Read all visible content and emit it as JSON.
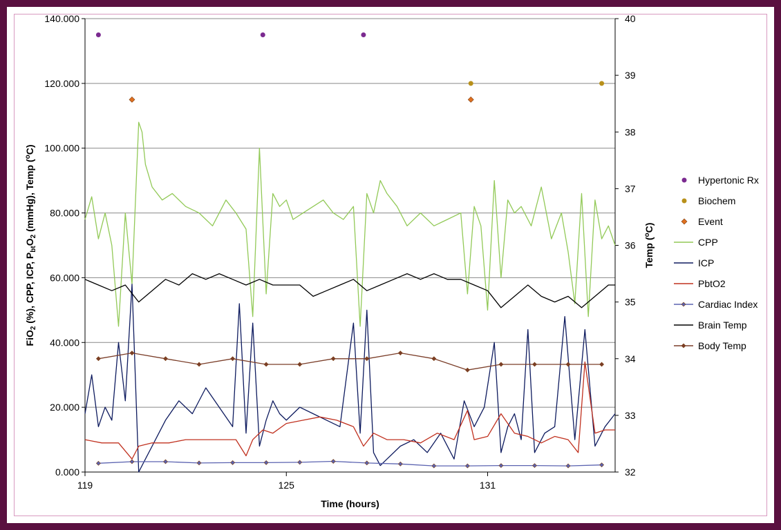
{
  "chart_data": {
    "type": "line",
    "xlabel": "Time (hours)",
    "ylabel_html": "FiO2 (%), CPP, ICP, PbtO2 (mmHg), Temp (oC)",
    "ylabel_parts": [
      "FiO",
      "2",
      " (%), CPP,  ICP, P",
      "bt",
      "O",
      "2",
      " (mmHg), Temp (",
      "o",
      "C)"
    ],
    "y2label": "Temp (oC)",
    "y2label_parts": [
      "Temp (",
      "o",
      "C)"
    ],
    "xlim": [
      119,
      134.8
    ],
    "ylim": [
      0,
      140
    ],
    "y2lim": [
      32,
      40
    ],
    "xticks": [
      119,
      125,
      131
    ],
    "xtick_labels": [
      "119",
      "125",
      "131"
    ],
    "yticks": [
      0,
      20,
      40,
      60,
      80,
      100,
      120,
      140
    ],
    "ytick_labels": [
      "0.000",
      "20.000",
      "40.000",
      "60.000",
      "80.000",
      "100.000",
      "120.000",
      "140.000"
    ],
    "y2ticks": [
      32,
      33,
      34,
      35,
      36,
      37,
      38,
      39,
      40
    ],
    "y2tick_labels": [
      "32",
      "33",
      "34",
      "35",
      "36",
      "37",
      "38",
      "39",
      "40"
    ],
    "legend_position": "right",
    "series": [
      {
        "name": "Hypertonic Rx",
        "kind": "marker",
        "marker": "circle",
        "color": "#7b2a90",
        "x": [
          119.4,
          124.3,
          127.3
        ],
        "y": [
          135,
          135,
          135
        ]
      },
      {
        "name": "Biochem",
        "kind": "marker",
        "marker": "circle",
        "color": "#b8901a",
        "x": [
          130.5,
          134.4
        ],
        "y": [
          120,
          120
        ]
      },
      {
        "name": "Event",
        "kind": "marker",
        "marker": "diamond",
        "color": "#e07020",
        "x": [
          120.4,
          130.5
        ],
        "y": [
          115,
          115
        ]
      },
      {
        "name": "CPP",
        "kind": "line",
        "color": "#92c957",
        "axis": "left",
        "x": [
          119,
          119.2,
          119.4,
          119.6,
          119.8,
          120.0,
          120.2,
          120.4,
          120.6,
          120.7,
          120.8,
          121.0,
          121.3,
          121.6,
          122.0,
          122.4,
          122.8,
          123.2,
          123.5,
          123.8,
          124.0,
          124.2,
          124.4,
          124.6,
          124.8,
          125.0,
          125.2,
          125.5,
          125.8,
          126.1,
          126.4,
          126.7,
          127.0,
          127.2,
          127.4,
          127.6,
          127.8,
          128.0,
          128.3,
          128.6,
          129.0,
          129.4,
          129.8,
          130.2,
          130.4,
          130.6,
          130.8,
          131.0,
          131.2,
          131.4,
          131.6,
          131.8,
          132.0,
          132.3,
          132.6,
          132.9,
          133.2,
          133.4,
          133.6,
          133.8,
          134.0,
          134.2,
          134.4,
          134.6,
          134.8
        ],
        "y": [
          78,
          85,
          72,
          80,
          70,
          45,
          80,
          58,
          108,
          105,
          95,
          88,
          84,
          86,
          82,
          80,
          76,
          84,
          80,
          75,
          48,
          100,
          55,
          86,
          82,
          84,
          78,
          80,
          82,
          84,
          80,
          78,
          82,
          45,
          86,
          80,
          90,
          86,
          82,
          76,
          80,
          76,
          78,
          80,
          55,
          82,
          76,
          50,
          90,
          60,
          84,
          80,
          82,
          76,
          88,
          72,
          80,
          68,
          52,
          86,
          48,
          84,
          72,
          76,
          70
        ]
      },
      {
        "name": "ICP",
        "kind": "line",
        "color": "#0d1a5e",
        "axis": "left",
        "x": [
          119,
          119.2,
          119.4,
          119.6,
          119.8,
          120.0,
          120.2,
          120.4,
          120.6,
          120.8,
          121.0,
          121.4,
          121.8,
          122.2,
          122.6,
          123.0,
          123.4,
          123.6,
          123.8,
          124.0,
          124.2,
          124.4,
          124.6,
          124.8,
          125.0,
          125.4,
          125.8,
          126.2,
          126.6,
          127.0,
          127.2,
          127.4,
          127.6,
          127.8,
          128.0,
          128.4,
          128.8,
          129.2,
          129.6,
          130.0,
          130.3,
          130.6,
          130.9,
          131.2,
          131.4,
          131.6,
          131.8,
          132.0,
          132.2,
          132.4,
          132.7,
          133.0,
          133.3,
          133.6,
          133.9,
          134.2,
          134.5,
          134.8
        ],
        "y": [
          18,
          30,
          14,
          20,
          16,
          40,
          22,
          58,
          0,
          4,
          8,
          16,
          22,
          18,
          26,
          20,
          14,
          52,
          12,
          46,
          8,
          16,
          22,
          18,
          16,
          20,
          18,
          16,
          14,
          46,
          12,
          50,
          6,
          2,
          4,
          8,
          10,
          6,
          12,
          4,
          22,
          14,
          20,
          40,
          6,
          14,
          18,
          10,
          44,
          6,
          12,
          14,
          48,
          10,
          44,
          8,
          14,
          18
        ]
      },
      {
        "name": "PbtO2",
        "kind": "line",
        "color": "#c0301e",
        "axis": "left",
        "x": [
          119,
          119.5,
          120.0,
          120.4,
          120.6,
          121.0,
          121.5,
          122.0,
          122.5,
          123.0,
          123.5,
          123.8,
          124.0,
          124.3,
          124.6,
          125.0,
          125.5,
          126.0,
          126.5,
          127.0,
          127.3,
          127.6,
          128.0,
          128.5,
          129.0,
          129.5,
          130.0,
          130.4,
          130.6,
          131.0,
          131.4,
          131.8,
          132.2,
          132.6,
          133.0,
          133.4,
          133.7,
          133.9,
          134.2,
          134.5,
          134.8
        ],
        "y": [
          10,
          9,
          9,
          4,
          8,
          9,
          9,
          10,
          10,
          10,
          10,
          5,
          10,
          13,
          12,
          15,
          16,
          17,
          16,
          14,
          8,
          12,
          10,
          10,
          9,
          12,
          10,
          19,
          10,
          11,
          18,
          12,
          11,
          9,
          11,
          10,
          6,
          34,
          12,
          13,
          13
        ]
      },
      {
        "name": "Cardiac Index",
        "kind": "line",
        "color": "#5a62b0",
        "axis": "left",
        "marker": "diamond",
        "x": [
          119.4,
          120.4,
          121.4,
          122.4,
          123.4,
          124.4,
          125.4,
          126.4,
          127.4,
          128.4,
          129.4,
          130.4,
          131.4,
          132.4,
          133.4,
          134.4
        ],
        "y": [
          2.7,
          3.2,
          3.2,
          2.8,
          2.9,
          2.9,
          3.0,
          3.3,
          2.8,
          2.5,
          1.9,
          1.9,
          2.0,
          2.0,
          1.9,
          2.2
        ]
      },
      {
        "name": "Brain Temp",
        "kind": "line",
        "color": "#000000",
        "axis": "right",
        "x": [
          119,
          119.4,
          119.8,
          120.2,
          120.6,
          121.0,
          121.4,
          121.8,
          122.2,
          122.6,
          123.0,
          123.4,
          123.8,
          124.2,
          124.6,
          125.0,
          125.4,
          125.8,
          126.2,
          126.6,
          127.0,
          127.4,
          127.8,
          128.2,
          128.6,
          129.0,
          129.4,
          129.8,
          130.2,
          130.6,
          131.0,
          131.4,
          131.8,
          132.2,
          132.6,
          133.0,
          133.4,
          133.8,
          134.2,
          134.6,
          134.8
        ],
        "y": [
          35.4,
          35.3,
          35.2,
          35.3,
          35.0,
          35.2,
          35.4,
          35.3,
          35.5,
          35.4,
          35.5,
          35.4,
          35.3,
          35.4,
          35.3,
          35.3,
          35.3,
          35.1,
          35.2,
          35.3,
          35.4,
          35.2,
          35.3,
          35.4,
          35.5,
          35.4,
          35.5,
          35.4,
          35.4,
          35.3,
          35.2,
          34.9,
          35.1,
          35.3,
          35.1,
          35.0,
          35.1,
          34.9,
          35.1,
          35.3,
          35.3
        ]
      },
      {
        "name": "Body Temp",
        "kind": "line",
        "color": "#7a3d28",
        "axis": "right",
        "marker": "diamond",
        "x": [
          119.4,
          120.4,
          121.4,
          122.4,
          123.4,
          124.4,
          125.4,
          126.4,
          127.4,
          128.4,
          129.4,
          130.4,
          131.4,
          132.4,
          133.4,
          134.4
        ],
        "y": [
          34.0,
          34.1,
          34.0,
          33.9,
          34.0,
          33.9,
          33.9,
          34.0,
          34.0,
          34.1,
          34.0,
          33.8,
          33.9,
          33.9,
          33.9,
          33.9
        ]
      }
    ]
  }
}
